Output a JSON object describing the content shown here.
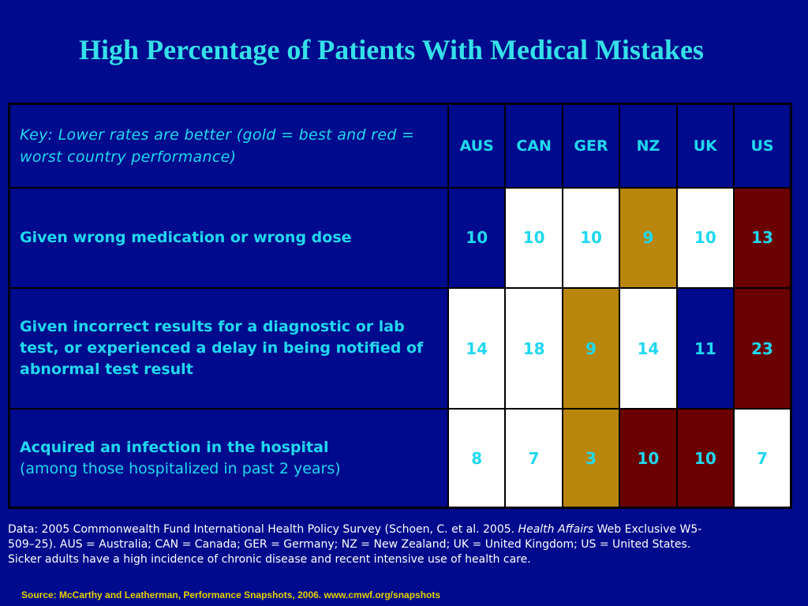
{
  "title": "High Percentage of Patients With Medical Mistakes",
  "table": {
    "key": "Key: Lower rates are better (gold = best and red = worst country performance)",
    "columns": [
      "AUS",
      "CAN",
      "GER",
      "NZ",
      "UK",
      "US"
    ],
    "rows": [
      {
        "label": "Given wrong medication or wrong dose",
        "sublabel": "",
        "values": [
          "10",
          "10",
          "10",
          "9",
          "10",
          "13"
        ],
        "cell_colors": [
          "blue",
          "white",
          "white",
          "gold",
          "white",
          "red"
        ]
      },
      {
        "label": "Given incorrect results for a diagnostic or lab test, or experienced a delay in being notified of abnormal test result",
        "sublabel": "",
        "values": [
          "14",
          "18",
          "9",
          "14",
          "11",
          "23"
        ],
        "cell_colors": [
          "white",
          "white",
          "gold",
          "white",
          "blue",
          "red"
        ]
      },
      {
        "label": "Acquired an infection in the hospital",
        "sublabel": "(among those hospitalized in past 2 years)",
        "values": [
          "8",
          "7",
          "3",
          "10",
          "10",
          "7"
        ],
        "cell_colors": [
          "white",
          "white",
          "gold",
          "red",
          "red",
          "white"
        ]
      }
    ]
  },
  "footnote": {
    "before_italic": "Data: 2005 Commonwealth Fund International Health Policy Survey (Schoen, C. et al. 2005. ",
    "italic": "Health Affairs",
    "after_italic": " Web Exclusive W5-509–25). AUS = Australia; CAN = Canada; GER = Germany; NZ = New Zealand; UK = United Kingdom; US = United States. Sicker adults have a high incidence of chronic disease and recent intensive use of health care."
  },
  "source": "Source: McCarthy and Leatherman, Performance Snapshots, 2006. www.cmwf.org/snapshots",
  "colors": {
    "background": "#000a8c",
    "title": "#35e0e8",
    "text": "#20d8f0",
    "gold": "#b8860b",
    "red": "#6a0000",
    "white": "#ffffff",
    "source": "#e8d000"
  }
}
